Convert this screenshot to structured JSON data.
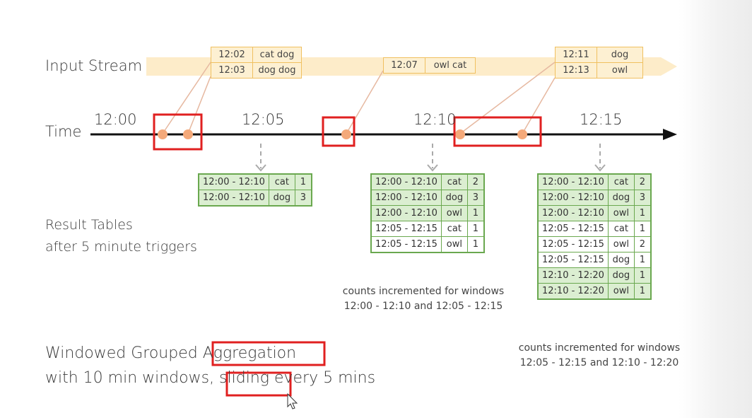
{
  "labels": {
    "input_stream": "Input Stream",
    "time": "Time",
    "result_tables_line1": "Result Tables",
    "result_tables_line2": "after 5 minute triggers",
    "windowed_line1": "Windowed Grouped Aggregation",
    "windowed_line2": "with 10 min windows, sliding every 5 mins"
  },
  "time_ticks": [
    "12:00",
    "12:05",
    "12:10",
    "12:15"
  ],
  "input_events": [
    {
      "rows": [
        {
          "time": "12:02",
          "words": "cat dog"
        },
        {
          "time": "12:03",
          "words": "dog dog"
        }
      ]
    },
    {
      "rows": [
        {
          "time": "12:07",
          "words": "owl cat"
        }
      ]
    },
    {
      "rows": [
        {
          "time": "12:11",
          "words": "dog"
        },
        {
          "time": "12:13",
          "words": "owl"
        }
      ]
    }
  ],
  "result_tables": [
    {
      "rows": [
        {
          "window": "12:00 - 12:10",
          "word": "cat",
          "count": "1"
        },
        {
          "window": "12:00 - 12:10",
          "word": "dog",
          "count": "3"
        }
      ]
    },
    {
      "rows": [
        {
          "window": "12:00 - 12:10",
          "word": "cat",
          "count": "2"
        },
        {
          "window": "12:00 - 12:10",
          "word": "dog",
          "count": "3"
        },
        {
          "window": "12:00 - 12:10",
          "word": "owl",
          "count": "1"
        },
        {
          "window": "12:05 - 12:15",
          "word": "cat",
          "count": "1"
        },
        {
          "window": "12:05 - 12:15",
          "word": "owl",
          "count": "1"
        }
      ]
    },
    {
      "rows": [
        {
          "window": "12:00 - 12:10",
          "word": "cat",
          "count": "2"
        },
        {
          "window": "12:00 - 12:10",
          "word": "dog",
          "count": "3"
        },
        {
          "window": "12:00 - 12:10",
          "word": "owl",
          "count": "1"
        },
        {
          "window": "12:05 - 12:15",
          "word": "cat",
          "count": "1"
        },
        {
          "window": "12:05 - 12:15",
          "word": "owl",
          "count": "2"
        },
        {
          "window": "12:05 - 12:15",
          "word": "dog",
          "count": "1"
        },
        {
          "window": "12:10 - 12:20",
          "word": "dog",
          "count": "1"
        },
        {
          "window": "12:10 - 12:20",
          "word": "owl",
          "count": "1"
        }
      ]
    }
  ],
  "notes": [
    {
      "line1": "counts incremented for windows",
      "line2": "12:00 - 12:10 and 12:05 - 12:15"
    },
    {
      "line1": "counts incremented for windows",
      "line2": "12:05 - 12:15 and 12:10 - 12:20"
    }
  ],
  "colors": {
    "stream_band": "#fde9c0",
    "event_border": "#f0c060",
    "event_fill": "#fdf0d2",
    "table_border": "#6aa84f",
    "table_fill": "#dbeed1",
    "highlight_red": "#e02020",
    "dot_orange": "#f4a97a",
    "connector": "#e6b8a0",
    "timeline": "#111111",
    "trigger_arrow": "#aaaaaa"
  },
  "icons": {
    "cursor": "mouse-pointer-icon"
  }
}
